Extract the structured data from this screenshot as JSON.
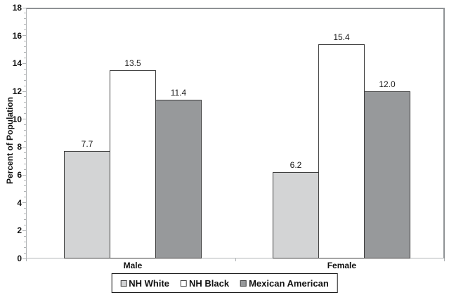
{
  "chart_data": {
    "type": "bar",
    "title": "",
    "xlabel": "",
    "ylabel": "Percent of Population",
    "ylim": [
      0,
      18
    ],
    "ytick_step": 2,
    "yminor_step": 0.4,
    "ytick_labels": [
      "0",
      "2",
      "4",
      "6",
      "8",
      "10",
      "12",
      "14",
      "16",
      "18"
    ],
    "categories": [
      "Male",
      "Female"
    ],
    "series": [
      {
        "name": "NH White",
        "color": "#d3d4d5",
        "values": [
          7.7,
          6.2
        ],
        "labels": [
          "7.7",
          "6.2"
        ]
      },
      {
        "name": "NH Black",
        "color": "#ffffff",
        "values": [
          13.5,
          15.4
        ],
        "labels": [
          "13.5",
          "15.4"
        ]
      },
      {
        "name": "Mexican American",
        "color": "#97999b",
        "values": [
          11.4,
          12.0
        ],
        "labels": [
          "11.4",
          "12.0"
        ]
      }
    ],
    "legend_position": "bottom",
    "grid": false
  },
  "colors": {
    "bar_border": "#3e3e3e",
    "axis_line": "#b2b5b7",
    "tick": "#aeb1b3",
    "frame": "#8f9295",
    "legend_border": "#1c1c1c",
    "text": "#111111",
    "background": "#ffffff"
  }
}
